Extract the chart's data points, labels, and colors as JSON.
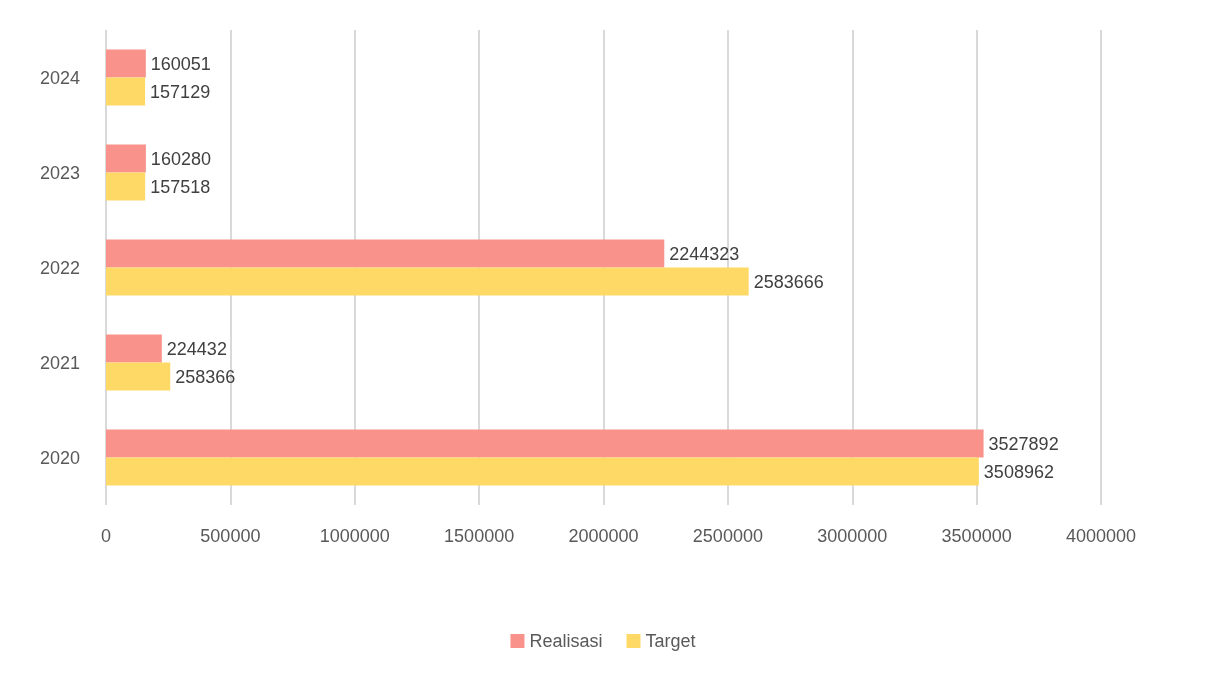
{
  "chart_data": {
    "type": "bar",
    "orientation": "horizontal",
    "categories": [
      "2024",
      "2023",
      "2022",
      "2021",
      "2020"
    ],
    "series": [
      {
        "name": "Realisasi",
        "color": "#f8928a",
        "values": [
          160051,
          160280,
          2244323,
          224432,
          3527892
        ]
      },
      {
        "name": "Target",
        "color": "#ffd966",
        "values": [
          157129,
          157518,
          2583666,
          258366,
          3508962
        ]
      }
    ],
    "xlim": [
      0,
      4000000
    ],
    "xticks": [
      0,
      500000,
      1000000,
      1500000,
      2000000,
      2500000,
      3000000,
      3500000,
      4000000
    ],
    "grid": "x",
    "legend": "bottom",
    "data_labels": true
  }
}
